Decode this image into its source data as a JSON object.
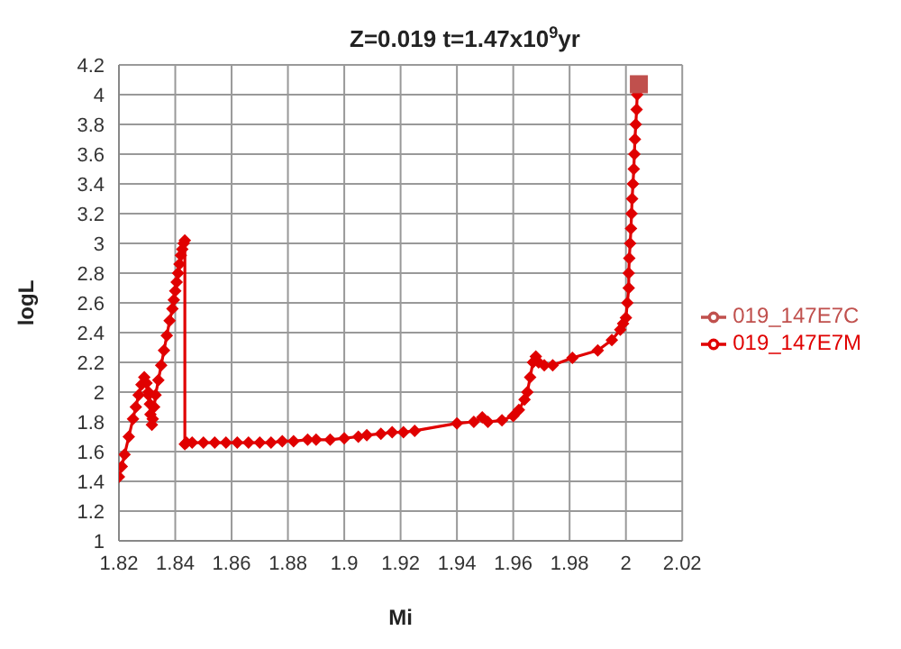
{
  "chart_data": {
    "type": "line",
    "title": "Z=0.019 t=1.47x10$^{9}$yr",
    "xlabel": "Mi",
    "ylabel": "logL",
    "xlim": [
      1.82,
      2.02
    ],
    "xticks": [
      1.82,
      1.84,
      1.86,
      1.88,
      1.9,
      1.92,
      1.94,
      1.96,
      1.98,
      2,
      2.02
    ],
    "ylim": [
      1,
      4.2
    ],
    "yticks": [
      1,
      1.2,
      1.4,
      1.6,
      1.8,
      2,
      2.2,
      2.4,
      2.6,
      2.8,
      3,
      3.2,
      3.4,
      3.6,
      3.8,
      4,
      4.2
    ],
    "grid": true,
    "legend": "right",
    "line_style": "solid",
    "series": [
      {
        "name": "019_147E7M",
        "color": "#e00000",
        "marker": "diamond",
        "x": [
          1.82,
          1.821,
          1.822,
          1.8235,
          1.825,
          1.826,
          1.827,
          1.828,
          1.829,
          1.8298,
          1.8305,
          1.831,
          1.8305,
          1.8312,
          1.8317,
          1.832,
          1.8325,
          1.833,
          1.834,
          1.835,
          1.836,
          1.837,
          1.838,
          1.839,
          1.8395,
          1.84,
          1.8405,
          1.841,
          1.8415,
          1.842,
          1.8425,
          1.843,
          1.8434,
          1.8434,
          1.844,
          1.846,
          1.85,
          1.854,
          1.858,
          1.862,
          1.866,
          1.87,
          1.874,
          1.878,
          1.882,
          1.887,
          1.89,
          1.895,
          1.9,
          1.905,
          1.908,
          1.913,
          1.917,
          1.921,
          1.925,
          1.94,
          1.946,
          1.949,
          1.951,
          1.956,
          1.96,
          1.962,
          1.964,
          1.965,
          1.966,
          1.967,
          1.968,
          1.969,
          1.971,
          1.974,
          1.981,
          1.99,
          1.995,
          1.998,
          1.999,
          2,
          2.0005,
          2.001,
          2.001,
          2.0012,
          2.0015,
          2.0018,
          2.002,
          2.0022,
          2.0025,
          2.0028,
          2.003,
          2.0032,
          2.0035,
          2.0038,
          2.004
        ],
        "values": [
          1.43,
          1.5,
          1.58,
          1.7,
          1.82,
          1.9,
          1.98,
          2.05,
          2.1,
          2.06,
          1.98,
          1.92,
          2.0,
          1.85,
          1.78,
          1.82,
          1.9,
          1.98,
          2.08,
          2.18,
          2.28,
          2.38,
          2.48,
          2.56,
          2.62,
          2.68,
          2.74,
          2.8,
          2.86,
          2.92,
          2.96,
          3.0,
          3.02,
          1.65,
          1.66,
          1.66,
          1.66,
          1.66,
          1.66,
          1.66,
          1.66,
          1.66,
          1.66,
          1.67,
          1.67,
          1.68,
          1.68,
          1.68,
          1.69,
          1.7,
          1.71,
          1.72,
          1.73,
          1.73,
          1.74,
          1.79,
          1.8,
          1.83,
          1.8,
          1.81,
          1.84,
          1.88,
          1.95,
          2.0,
          2.1,
          2.2,
          2.24,
          2.2,
          2.18,
          2.18,
          2.23,
          2.28,
          2.35,
          2.42,
          2.46,
          2.5,
          2.6,
          2.7,
          2.8,
          2.9,
          3.0,
          3.1,
          3.2,
          3.3,
          3.4,
          3.5,
          3.6,
          3.7,
          3.8,
          3.9,
          4.0
        ]
      },
      {
        "name": "019_147E7C",
        "color": "#c0504d",
        "marker": "square",
        "x": [
          2.0046
        ],
        "values": [
          4.07
        ]
      }
    ]
  }
}
